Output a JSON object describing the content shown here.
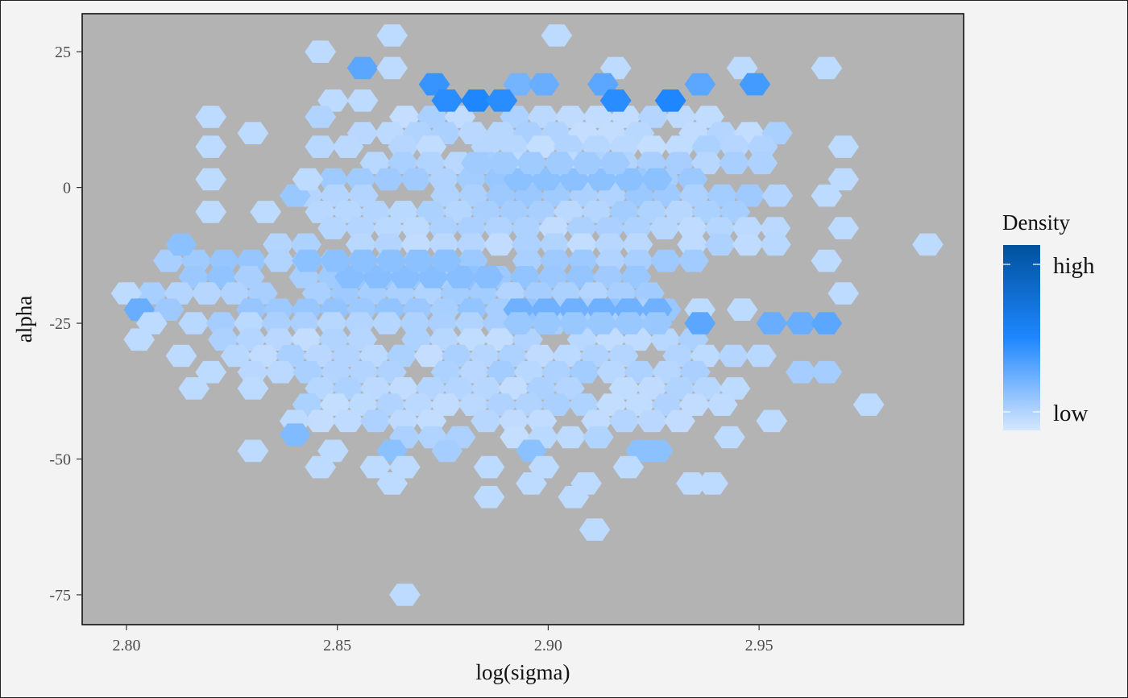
{
  "chart_data": {
    "type": "heatmap",
    "subtype": "hexbin",
    "xlabel": "log(sigma)",
    "ylabel": "alpha",
    "xlim": [
      2.79,
      2.999
    ],
    "ylim": [
      -80,
      32
    ],
    "xticks": [
      {
        "value": 2.8,
        "label": "2.80"
      },
      {
        "value": 2.85,
        "label": "2.85"
      },
      {
        "value": 2.9,
        "label": "2.90"
      },
      {
        "value": 2.95,
        "label": "2.95"
      }
    ],
    "yticks": [
      {
        "value": 25,
        "label": "25"
      },
      {
        "value": 0,
        "label": "0"
      },
      {
        "value": -25,
        "label": "-25"
      },
      {
        "value": -50,
        "label": "-50"
      },
      {
        "value": -75,
        "label": "-75"
      }
    ],
    "grid": false,
    "panel_background": "#b3b3b3",
    "legend": {
      "title": "Density",
      "placement": "right",
      "labels": [
        "high",
        "low"
      ],
      "colors": [
        "#d6e7ff",
        "#1e87ff",
        "#00519c"
      ]
    },
    "hex_rows_note": "rows listed by alpha center value; each row gives list of [x_start, x_end] ranges in log(sigma) units of filled hexes plus density level overrides",
    "cells": [
      {
        "x": 2.866,
        "y": -75,
        "d": 0.1
      },
      {
        "x": 2.911,
        "y": -63,
        "d": 0.1
      },
      {
        "x": 2.886,
        "y": -57,
        "d": 0.1
      },
      {
        "x": 2.906,
        "y": -57,
        "d": 0.1
      },
      {
        "x": 2.863,
        "y": -54.5,
        "d": 0.1
      },
      {
        "x": 2.896,
        "y": -54.5,
        "d": 0.1
      },
      {
        "x": 2.909,
        "y": -54.5,
        "d": 0.1
      },
      {
        "x": 2.934,
        "y": -54.5,
        "d": 0.1
      },
      {
        "x": 2.939,
        "y": -54.5,
        "d": 0.1
      },
      {
        "x": 2.83,
        "y": -48.5,
        "d": 0.1
      },
      {
        "x": 2.849,
        "y": -48.5,
        "d": 0.1
      },
      {
        "x": 2.863,
        "y": -48.5,
        "d": 0.3
      },
      {
        "x": 2.876,
        "y": -48.5,
        "d": 0.2
      },
      {
        "x": 2.896,
        "y": -48.5,
        "d": 0.3
      },
      {
        "x": 2.922,
        "y": -48.5,
        "d": 0.3
      },
      {
        "x": 2.926,
        "y": -48.5,
        "d": 0.3
      },
      {
        "x": 2.976,
        "y": -40,
        "d": 0.1
      },
      {
        "x": 2.97,
        "y": -19.5,
        "d": 0.1
      },
      {
        "x": 2.99,
        "y": -10.5,
        "d": 0.1
      },
      {
        "x": 2.966,
        "y": -13.5,
        "d": 0.1
      },
      {
        "x": 2.97,
        "y": -7.5,
        "d": 0.1
      },
      {
        "x": 2.966,
        "y": -1.5,
        "d": 0.1
      },
      {
        "x": 2.97,
        "y": 1.5,
        "d": 0.1
      },
      {
        "x": 2.97,
        "y": 7.5,
        "d": 0.1
      },
      {
        "x": 2.966,
        "y": 22,
        "d": 0.1
      },
      {
        "x": 2.846,
        "y": 25,
        "d": 0.1
      },
      {
        "x": 2.863,
        "y": 28,
        "d": 0.1
      },
      {
        "x": 2.902,
        "y": 28,
        "d": 0.1
      },
      {
        "x": 2.856,
        "y": 22,
        "d": 0.5
      },
      {
        "x": 2.863,
        "y": 22,
        "d": 0.1
      },
      {
        "x": 2.916,
        "y": 22,
        "d": 0.1
      },
      {
        "x": 2.946,
        "y": 22,
        "d": 0.1
      },
      {
        "x": 2.873,
        "y": 19,
        "d": 0.65
      },
      {
        "x": 2.893,
        "y": 19,
        "d": 0.4
      },
      {
        "x": 2.899,
        "y": 19,
        "d": 0.45
      },
      {
        "x": 2.913,
        "y": 19,
        "d": 0.5
      },
      {
        "x": 2.936,
        "y": 19,
        "d": 0.5
      },
      {
        "x": 2.949,
        "y": 19,
        "d": 0.6
      },
      {
        "x": 2.876,
        "y": 16,
        "d": 0.7
      },
      {
        "x": 2.883,
        "y": 16,
        "d": 0.75
      },
      {
        "x": 2.889,
        "y": 16,
        "d": 0.7
      },
      {
        "x": 2.916,
        "y": 16,
        "d": 0.7
      },
      {
        "x": 2.929,
        "y": 16,
        "d": 0.75
      },
      {
        "x": 2.849,
        "y": 16,
        "d": 0.1
      },
      {
        "x": 2.856,
        "y": 16,
        "d": 0.1
      },
      {
        "x": 2.82,
        "y": 13,
        "d": 0.1
      },
      {
        "x": 2.846,
        "y": 13,
        "d": 0.15
      },
      {
        "x": 2.83,
        "y": 10,
        "d": 0.1
      },
      {
        "x": 2.82,
        "y": 7.5,
        "d": 0.1
      },
      {
        "x": 2.82,
        "y": 1.5,
        "d": 0.1
      },
      {
        "x": 2.82,
        "y": -4.5,
        "d": 0.1
      },
      {
        "x": 2.833,
        "y": -4.5,
        "d": 0.1
      },
      {
        "x": 2.84,
        "y": -1.5,
        "d": 0.25
      },
      {
        "x": 2.843,
        "y": 1.5,
        "d": 0.1
      },
      {
        "x": 2.813,
        "y": -10.5,
        "d": 0.3
      },
      {
        "x": 2.8,
        "y": -19.5,
        "d": 0.1
      },
      {
        "x": 2.803,
        "y": -22.5,
        "d": 0.45
      },
      {
        "x": 2.806,
        "y": -25,
        "d": 0.1
      },
      {
        "x": 2.803,
        "y": -28,
        "d": 0.1
      },
      {
        "x": 2.813,
        "y": -31,
        "d": 0.1
      },
      {
        "x": 2.82,
        "y": -34,
        "d": 0.1
      },
      {
        "x": 2.816,
        "y": -37,
        "d": 0.1
      },
      {
        "x": 2.83,
        "y": -37,
        "d": 0.1
      },
      {
        "x": 2.84,
        "y": -43,
        "d": 0.1
      },
      {
        "x": 2.84,
        "y": -45.5,
        "d": 0.35
      },
      {
        "x": 2.846,
        "y": -51.5,
        "d": 0.1
      },
      {
        "x": 2.859,
        "y": -51.5,
        "d": 0.1
      },
      {
        "x": 2.866,
        "y": -51.5,
        "d": 0.1
      },
      {
        "x": 2.886,
        "y": -51.5,
        "d": 0.1
      },
      {
        "x": 2.899,
        "y": -51.5,
        "d": 0.1
      },
      {
        "x": 2.919,
        "y": -51.5,
        "d": 0.1
      },
      {
        "x": 2.936,
        "y": -22.5,
        "d": 0.1
      },
      {
        "x": 2.946,
        "y": -22.5,
        "d": 0.1
      },
      {
        "x": 2.936,
        "y": -25,
        "d": 0.5
      },
      {
        "x": 2.953,
        "y": -25,
        "d": 0.45
      },
      {
        "x": 2.96,
        "y": -25,
        "d": 0.45
      },
      {
        "x": 2.966,
        "y": -25,
        "d": 0.5
      },
      {
        "x": 2.96,
        "y": -34,
        "d": 0.2
      },
      {
        "x": 2.966,
        "y": -34,
        "d": 0.2
      },
      {
        "x": 2.953,
        "y": -43,
        "d": 0.1
      },
      {
        "x": 2.943,
        "y": -46,
        "d": 0.1
      }
    ],
    "dense_region": [
      {
        "y": 13,
        "x0": 2.866,
        "x1": 2.943,
        "d": 0.12
      },
      {
        "y": 10,
        "x0": 2.856,
        "x1": 2.956,
        "d": 0.12
      },
      {
        "y": 7.5,
        "x0": 2.846,
        "x1": 2.953,
        "d": 0.12
      },
      {
        "y": 4.5,
        "x0": 2.859,
        "x1": 2.953,
        "d": 0.15
      },
      {
        "y": 1.5,
        "x0": 2.849,
        "x1": 2.939,
        "d": 0.2
      },
      {
        "y": -1.5,
        "x0": 2.843,
        "x1": 2.956,
        "d": 0.18
      },
      {
        "y": -4.5,
        "x0": 2.846,
        "x1": 2.949,
        "d": 0.15
      },
      {
        "y": -7.5,
        "x0": 2.849,
        "x1": 2.963,
        "d": 0.12
      },
      {
        "y": -10.5,
        "x0": 2.836,
        "x1": 2.956,
        "d": 0.12
      },
      {
        "y": -13.5,
        "x0": 2.81,
        "x1": 2.939,
        "d": 0.2
      },
      {
        "y": -16.5,
        "x0": 2.816,
        "x1": 2.926,
        "d": 0.22
      },
      {
        "y": -19.5,
        "x0": 2.806,
        "x1": 2.929,
        "d": 0.18
      },
      {
        "y": -22.5,
        "x0": 2.81,
        "x1": 2.929,
        "d": 0.22
      },
      {
        "y": -25,
        "x0": 2.816,
        "x1": 2.926,
        "d": 0.15
      },
      {
        "y": -28,
        "x0": 2.823,
        "x1": 2.939,
        "d": 0.12
      },
      {
        "y": -31,
        "x0": 2.826,
        "x1": 2.956,
        "d": 0.12
      },
      {
        "y": -34,
        "x0": 2.83,
        "x1": 2.939,
        "d": 0.15
      },
      {
        "y": -37,
        "x0": 2.846,
        "x1": 2.946,
        "d": 0.12
      },
      {
        "y": -40,
        "x0": 2.843,
        "x1": 2.946,
        "d": 0.12
      },
      {
        "y": -43,
        "x0": 2.846,
        "x1": 2.936,
        "d": 0.12
      },
      {
        "y": -46,
        "x0": 2.866,
        "x1": 2.923,
        "d": 0.12
      }
    ]
  }
}
